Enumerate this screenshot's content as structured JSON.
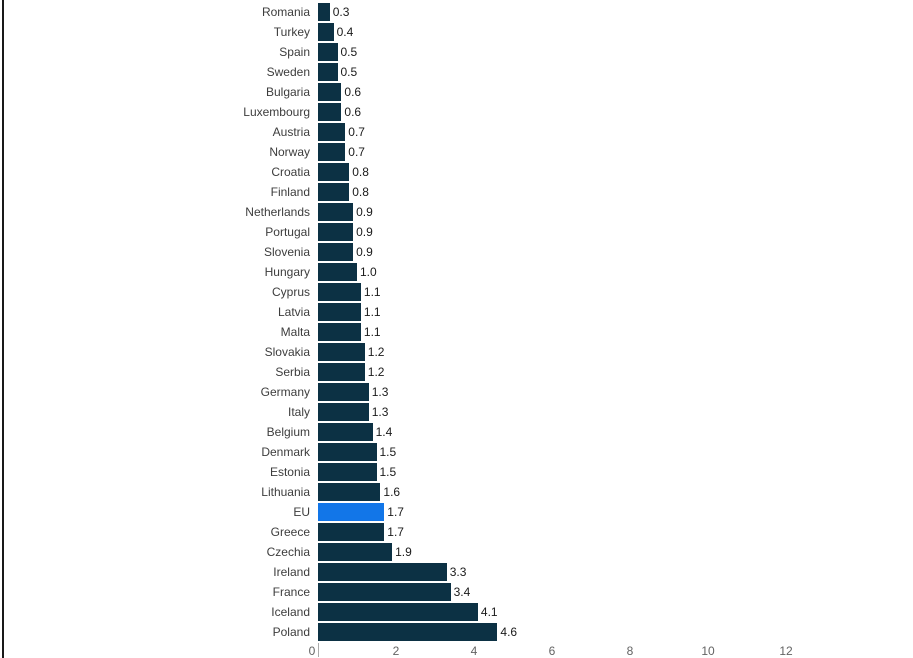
{
  "chart_data": {
    "type": "bar",
    "orientation": "horizontal",
    "title": "",
    "xlabel": "",
    "ylabel": "",
    "categories": [
      "Romania",
      "Turkey",
      "Spain",
      "Sweden",
      "Bulgaria",
      "Luxembourg",
      "Austria",
      "Norway",
      "Croatia",
      "Finland",
      "Netherlands",
      "Portugal",
      "Slovenia",
      "Hungary",
      "Cyprus",
      "Latvia",
      "Malta",
      "Slovakia",
      "Serbia",
      "Germany",
      "Italy",
      "Belgium",
      "Denmark",
      "Estonia",
      "Lithuania",
      "EU",
      "Greece",
      "Czechia",
      "Ireland",
      "France",
      "Iceland",
      "Poland"
    ],
    "values": [
      0.3,
      0.4,
      0.5,
      0.5,
      0.6,
      0.6,
      0.7,
      0.7,
      0.8,
      0.8,
      0.9,
      0.9,
      0.9,
      1.0,
      1.1,
      1.1,
      1.1,
      1.2,
      1.2,
      1.3,
      1.3,
      1.4,
      1.5,
      1.5,
      1.6,
      1.7,
      1.7,
      1.9,
      3.3,
      3.4,
      4.1,
      4.6
    ],
    "value_labels": [
      "0.3",
      "0.4",
      "0.5",
      "0.5",
      "0.6",
      "0.6",
      "0.7",
      "0.7",
      "0.8",
      "0.8",
      "0.9",
      "0.9",
      "0.9",
      "1.0",
      "1.1",
      "1.1",
      "1.1",
      "1.2",
      "1.2",
      "1.3",
      "1.3",
      "1.4",
      "1.5",
      "1.5",
      "1.6",
      "1.7",
      "1.7",
      "1.9",
      "3.3",
      "3.4",
      "4.1",
      "4.6"
    ],
    "highlight_category": "EU",
    "x_ticks": [
      "0",
      "2",
      "4",
      "6",
      "8",
      "10",
      "12"
    ],
    "xlim": [
      0,
      15
    ],
    "grid": false,
    "legend": false,
    "colors": {
      "bar": "#0c3144",
      "highlight_bar": "#1276e8",
      "category_label": "#3d3d3d",
      "value_label": "#1a1a1a",
      "axis_tick_label": "#636363",
      "zero_tick_line": "#ababab",
      "edge_line": "#191919"
    }
  }
}
